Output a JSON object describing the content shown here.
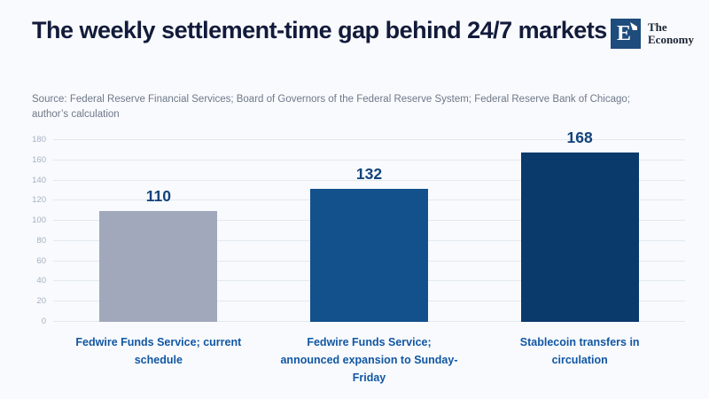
{
  "header": {
    "logo": {
      "mark_letter": "E",
      "name_line1": "The",
      "name_line2": "Economy",
      "mark_color": "#1E4C7C"
    }
  },
  "source": "Source: Federal Reserve Financial Services; Board of Governors of the Federal Reserve System; Federal Reserve Bank of Chicago; author’s calculation",
  "chart_data": {
    "type": "bar",
    "title": "The weekly settlement-time gap behind 24/7 markets",
    "categories": [
      "Fedwire Funds Service; current\nschedule",
      "Fedwire Funds Service;\nannounced expansion to Sunday-\nFriday",
      "Stablecoin transfers in\ncirculation"
    ],
    "values": [
      110,
      132,
      168
    ],
    "bar_colors": [
      "#A1A8BC",
      "#12518C",
      "#0A3A6C"
    ],
    "value_label_color": "#12437A",
    "category_label_color": "#1257A3",
    "xlabel": "",
    "ylabel": "",
    "ylim": [
      0,
      180
    ],
    "ytick_step": 20,
    "grid": true,
    "grid_color": "#E4E9F1",
    "background_color": "#F8FAFD",
    "legend": "none"
  }
}
